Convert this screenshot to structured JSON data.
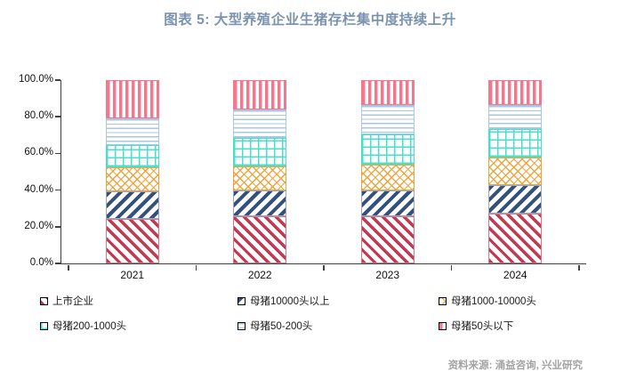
{
  "title": "图表 5:  大型养殖企业生猪存栏集中度持续上升",
  "source": "资料来源: 涌益咨询, 兴业研究",
  "colors": {
    "title": "#7a93af",
    "axis": "#404040",
    "source_text": "#a3a3a3",
    "series": [
      "#c13a52",
      "#33517c",
      "#f0a33c",
      "#49dfcd",
      "#a9c7e4",
      "#f0798f"
    ]
  },
  "chart_data": {
    "type": "bar",
    "stacked": true,
    "percent_stacked": true,
    "title": "图表 5:  大型养殖企业生猪存栏集中度持续上升",
    "categories": [
      "2021",
      "2022",
      "2023",
      "2024"
    ],
    "series": [
      {
        "name": "上市企业",
        "color": "#c13a52",
        "pattern": "diagonal-down-stripes",
        "values": [
          24.5,
          25.5,
          25.5,
          27.4
        ]
      },
      {
        "name": "母猪10000头以上",
        "color": "#33517c",
        "pattern": "diagonal-up-stripes",
        "values": [
          14.9,
          14.4,
          14.5,
          15.3
        ]
      },
      {
        "name": "母猪1000-10000头",
        "color": "#f0a33c",
        "pattern": "diamond-lattice",
        "values": [
          13.0,
          13.0,
          14.0,
          15.0
        ]
      },
      {
        "name": "母猪200-1000头",
        "color": "#49dfcd",
        "pattern": "square-grid",
        "values": [
          12.2,
          15.5,
          16.6,
          15.4
        ]
      },
      {
        "name": "母猪50-200头",
        "color": "#a9c7e4",
        "pattern": "horizontal-lines",
        "values": [
          14.6,
          15.5,
          15.7,
          13.5
        ]
      },
      {
        "name": "母猪50头以下",
        "color": "#f0798f",
        "pattern": "vertical-stripes",
        "values": [
          20.8,
          16.1,
          13.7,
          13.4
        ]
      }
    ],
    "xlabel": "",
    "ylabel": "",
    "ylim": [
      0,
      100
    ],
    "y_ticks": [
      "0.0%",
      "20.0%",
      "40.0%",
      "60.0%",
      "80.0%",
      "100.0%"
    ],
    "grid": false,
    "legend_position": "bottom"
  }
}
